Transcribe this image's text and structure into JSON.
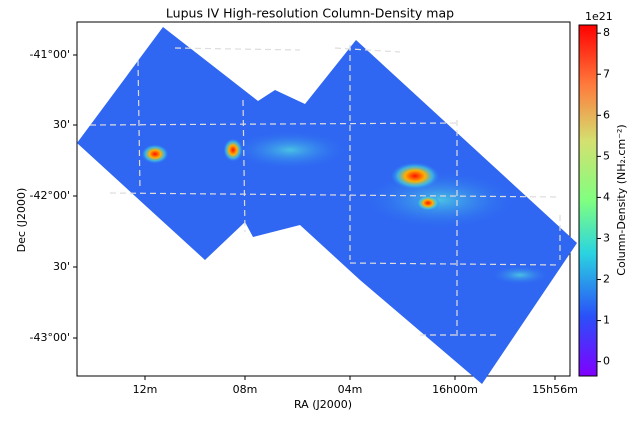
{
  "chart_data": {
    "type": "map",
    "title": "Lupus IV High-resolution Column-Density map",
    "x_label": "RA (J2000)",
    "y_label": "Dec (J2000)",
    "xtick_labels": [
      "12m",
      "08m",
      "04m",
      "16h00m",
      "15h56m"
    ],
    "ytick_labels": [
      "-41°00'",
      "30'",
      "-42°00'",
      "30'",
      "-43°00'"
    ],
    "colorbar": {
      "label": "Column-Density (NH₂.cm⁻²)",
      "offset_label": "1e21",
      "lim": [
        -0.35,
        8.2
      ],
      "ticks": [
        0,
        1,
        2,
        3,
        4,
        5,
        6,
        7,
        8
      ],
      "colormap": "rainbow"
    }
  }
}
